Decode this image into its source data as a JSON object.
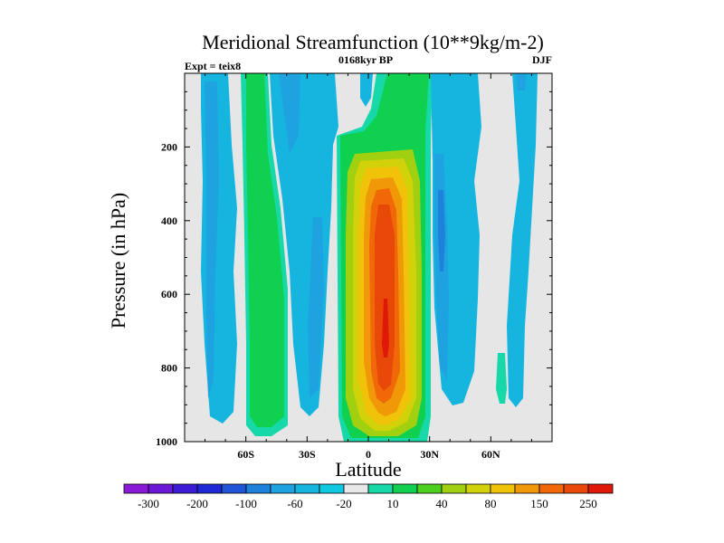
{
  "chart_data": {
    "type": "heatmap",
    "title": "Meridional Streamfunction (10**9kg/m-2)",
    "left_label": "Expt = teix8",
    "center_label": "0168kyr BP",
    "right_label": "DJF",
    "xlabel": "Latitude",
    "ylabel": "Pressure (in hPa)",
    "xlim": [
      -90,
      90
    ],
    "ylim": [
      0,
      1000
    ],
    "y_inverted": true,
    "x_ticks": [
      {
        "value": -60,
        "label": "60S"
      },
      {
        "value": -30,
        "label": "30S"
      },
      {
        "value": 0,
        "label": "0"
      },
      {
        "value": 30,
        "label": "30N"
      },
      {
        "value": 60,
        "label": "60N"
      }
    ],
    "y_ticks": [
      {
        "value": 200,
        "label": "200"
      },
      {
        "value": 400,
        "label": "400"
      },
      {
        "value": 600,
        "label": "600"
      },
      {
        "value": 800,
        "label": "800"
      },
      {
        "value": 1000,
        "label": "1000"
      }
    ],
    "background_color": "#e6e6e6",
    "colorbar": {
      "colors": [
        "#8b1ad6",
        "#6a18d6",
        "#3c1ad6",
        "#1f28d6",
        "#1f55d6",
        "#1e82dc",
        "#1fa2e0",
        "#16b5e0",
        "#10c8e0",
        "#e8e8e8",
        "#16d8a8",
        "#10d050",
        "#4cd020",
        "#a0d010",
        "#d2d20a",
        "#f0c208",
        "#f09808",
        "#f06808",
        "#e84808",
        "#e01808"
      ],
      "labels": [
        "-300",
        "-200",
        "-100",
        "-60",
        "-20",
        "10",
        "40",
        "80",
        "150",
        "250"
      ]
    },
    "cells": [
      {
        "lat": -75,
        "p": [
          0,
          990
        ],
        "value": -15
      },
      {
        "lat": -72,
        "p": [
          30,
          970
        ],
        "value": -20
      },
      {
        "lat": -55,
        "p": [
          0,
          980
        ],
        "value": 25
      },
      {
        "lat": -45,
        "p": [
          0,
          950
        ],
        "value": -15
      },
      {
        "lat": -20,
        "p": [
          0,
          920
        ],
        "value": -15
      },
      {
        "lat": 5,
        "p": [
          130,
          1000
        ],
        "value": 30
      },
      {
        "lat": 5,
        "p": [
          210,
          990
        ],
        "value": 90
      },
      {
        "lat": 8,
        "p": [
          300,
          960
        ],
        "value": 200
      },
      {
        "lat": 8,
        "p": [
          600,
          860
        ],
        "value": 260
      },
      {
        "lat": 10,
        "p": [
          0,
          130
        ],
        "value": 30
      },
      {
        "lat": 35,
        "p": [
          210,
          950
        ],
        "value": -20
      },
      {
        "lat": 42,
        "p": [
          0,
          840
        ],
        "value": -15
      },
      {
        "lat": 65,
        "p": [
          0,
          920
        ],
        "value": -15
      },
      {
        "lat": 70,
        "p": [
          650,
          870
        ],
        "value": 20
      }
    ]
  }
}
